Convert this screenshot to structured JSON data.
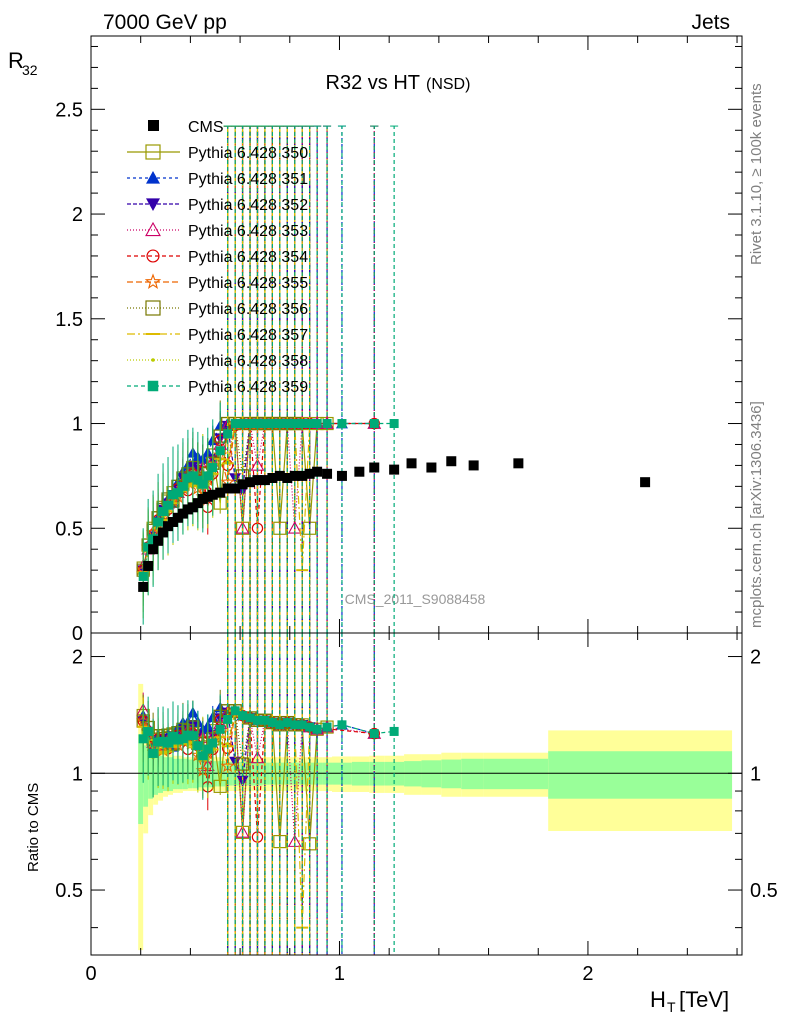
{
  "header": {
    "left": "7000 GeV pp",
    "right": "Jets"
  },
  "side_text": {
    "top": "Rivet 3.1.10, ≥ 100k events",
    "bottom": "mcplots.cern.ch [arXiv:1306.3436]"
  },
  "watermark": "CMS_2011_S9088458",
  "chart_data": {
    "type": "scatter",
    "title": "R32 vs HT",
    "title_suffix": "(NSD)",
    "xlabel": "H",
    "xlabel_sub": "T",
    "xlabel_unit": "[TeV]",
    "ylabel": "R",
    "ylabel_sub": "32",
    "ratio_ylabel": "Ratio to CMS",
    "xlim": [
      0,
      2.62
    ],
    "ylim": [
      0,
      2.85
    ],
    "ratio_ylim": [
      0.34,
      2.3
    ],
    "x_ticks": [
      "0",
      "1",
      "2"
    ],
    "y_ticks": [
      "0",
      "0.5",
      "1",
      "1.5",
      "2",
      "2.5"
    ],
    "ratio_ticks": [
      "0.5",
      "1",
      "2"
    ],
    "data": {
      "name": "CMS",
      "x": [
        0.21,
        0.23,
        0.25,
        0.27,
        0.29,
        0.31,
        0.33,
        0.35,
        0.37,
        0.39,
        0.41,
        0.43,
        0.45,
        0.47,
        0.49,
        0.52,
        0.55,
        0.58,
        0.61,
        0.64,
        0.67,
        0.7,
        0.73,
        0.76,
        0.79,
        0.82,
        0.85,
        0.88,
        0.91,
        0.95,
        1.01,
        1.08,
        1.14,
        1.22,
        1.29,
        1.37,
        1.45,
        1.54,
        1.72,
        2.23
      ],
      "y": [
        0.22,
        0.32,
        0.4,
        0.44,
        0.48,
        0.51,
        0.53,
        0.55,
        0.57,
        0.59,
        0.6,
        0.62,
        0.64,
        0.65,
        0.66,
        0.67,
        0.69,
        0.69,
        0.71,
        0.72,
        0.73,
        0.73,
        0.74,
        0.75,
        0.74,
        0.75,
        0.75,
        0.76,
        0.77,
        0.76,
        0.75,
        0.77,
        0.79,
        0.78,
        0.81,
        0.79,
        0.82,
        0.8,
        0.81,
        0.72
      ]
    },
    "uncertainty_bands": {
      "edges": [
        0.19,
        0.21,
        0.23,
        0.25,
        0.27,
        0.29,
        0.31,
        0.33,
        0.35,
        0.37,
        0.39,
        0.41,
        0.43,
        0.45,
        0.47,
        0.49,
        0.51,
        0.54,
        0.57,
        0.6,
        0.63,
        0.66,
        0.69,
        0.72,
        0.75,
        0.78,
        0.81,
        0.84,
        0.87,
        0.9,
        0.93,
        0.97,
        1.05,
        1.12,
        1.18,
        1.26,
        1.33,
        1.41,
        1.49,
        1.58,
        1.84,
        2.58
      ],
      "stat": [
        0.26,
        0.18,
        0.14,
        0.12,
        0.11,
        0.1,
        0.1,
        0.09,
        0.09,
        0.09,
        0.085,
        0.085,
        0.08,
        0.08,
        0.08,
        0.075,
        0.075,
        0.07,
        0.07,
        0.07,
        0.07,
        0.07,
        0.065,
        0.065,
        0.065,
        0.065,
        0.065,
        0.065,
        0.065,
        0.065,
        0.065,
        0.065,
        0.07,
        0.07,
        0.07,
        0.075,
        0.08,
        0.085,
        0.09,
        0.09,
        0.14
      ],
      "total": [
        0.7,
        0.3,
        0.22,
        0.17,
        0.15,
        0.13,
        0.12,
        0.11,
        0.11,
        0.1,
        0.1,
        0.1,
        0.1,
        0.1,
        0.1,
        0.1,
        0.1,
        0.1,
        0.1,
        0.1,
        0.1,
        0.1,
        0.1,
        0.1,
        0.1,
        0.1,
        0.1,
        0.1,
        0.1,
        0.1,
        0.1,
        0.105,
        0.105,
        0.11,
        0.11,
        0.12,
        0.12,
        0.13,
        0.13,
        0.13,
        0.29
      ],
      "stat_color": "#99ff99",
      "total_color": "#ffff99"
    },
    "mc_x": [
      0.21,
      0.23,
      0.25,
      0.27,
      0.29,
      0.31,
      0.33,
      0.35,
      0.37,
      0.39,
      0.41,
      0.43,
      0.45,
      0.47,
      0.49,
      0.52,
      0.55,
      0.58,
      0.61,
      0.64,
      0.67,
      0.7,
      0.73,
      0.76,
      0.79,
      0.82,
      0.85,
      0.88,
      0.91,
      0.95,
      1.01,
      1.14,
      1.22
    ],
    "series": [
      {
        "name": "Pythia 6.428 350",
        "color": "#999900",
        "marker": "open-square",
        "dash": "solid",
        "values": [
          0.31,
          0.42,
          0.5,
          0.55,
          0.6,
          0.63,
          0.67,
          0.7,
          0.71,
          0.74,
          0.76,
          0.75,
          0.72,
          0.78,
          0.85,
          0.62,
          1.0,
          1.0,
          0.5,
          1.0,
          1.0,
          1.0,
          1.0,
          0.5,
          1.0,
          1.0,
          1.0,
          0.5,
          1.0,
          1.0,
          null,
          null,
          null
        ]
      },
      {
        "name": "Pythia 6.428 351",
        "color": "#0033cc",
        "marker": "triangle-up",
        "dash": "3,3",
        "values": [
          0.31,
          0.42,
          0.47,
          0.55,
          0.58,
          0.64,
          0.62,
          0.72,
          0.77,
          0.8,
          0.86,
          0.84,
          0.83,
          0.86,
          0.92,
          0.99,
          1.0,
          1.0,
          1.0,
          1.0,
          1.0,
          1.0,
          1.0,
          1.0,
          1.0,
          1.0,
          1.0,
          1.0,
          1.0,
          1.0,
          1.0,
          1.0,
          null
        ]
      },
      {
        "name": "Pythia 6.428 352",
        "color": "#3300aa",
        "marker": "triangle-down",
        "dash": "4,2",
        "values": [
          0.3,
          0.41,
          0.46,
          0.53,
          0.59,
          0.62,
          0.66,
          0.69,
          0.74,
          0.75,
          0.8,
          0.78,
          0.7,
          0.74,
          0.83,
          0.93,
          0.99,
          0.74,
          0.68,
          1.0,
          1.0,
          1.0,
          1.0,
          1.0,
          1.0,
          1.0,
          1.0,
          1.0,
          null,
          null,
          null,
          null,
          null
        ]
      },
      {
        "name": "Pythia 6.428 353",
        "color": "#cc0066",
        "marker": "open-triangle",
        "dash": "1,2",
        "values": [
          0.32,
          0.4,
          0.48,
          0.52,
          0.57,
          0.62,
          0.66,
          0.67,
          0.72,
          0.76,
          0.77,
          0.74,
          0.79,
          0.68,
          0.82,
          0.9,
          0.99,
          1.0,
          0.5,
          1.0,
          0.8,
          1.0,
          1.0,
          1.0,
          1.0,
          0.5,
          1.0,
          1.0,
          1.0,
          1.0,
          null,
          1.0,
          null
        ]
      },
      {
        "name": "Pythia 6.428 354",
        "color": "#dd0000",
        "marker": "open-circle",
        "dash": "4,3",
        "values": [
          0.3,
          0.41,
          0.47,
          0.54,
          0.56,
          0.59,
          0.64,
          0.69,
          0.7,
          0.68,
          0.76,
          0.73,
          0.77,
          0.6,
          0.76,
          0.92,
          0.8,
          0.99,
          1.0,
          1.0,
          0.5,
          1.0,
          1.0,
          1.0,
          1.0,
          1.0,
          1.0,
          1.0,
          null,
          null,
          null,
          1.0,
          null
        ]
      },
      {
        "name": "Pythia 6.428 355",
        "color": "#ee6600",
        "marker": "open-star",
        "dash": "6,3",
        "values": [
          0.3,
          0.41,
          0.48,
          0.51,
          0.55,
          0.6,
          0.63,
          0.65,
          0.69,
          0.72,
          0.73,
          0.69,
          0.65,
          0.73,
          0.8,
          0.85,
          0.72,
          1.0,
          1.0,
          1.0,
          1.0,
          1.0,
          1.0,
          1.0,
          null,
          null,
          null,
          null,
          null,
          null,
          null,
          null,
          null
        ]
      },
      {
        "name": "Pythia 6.428 356",
        "color": "#777700",
        "marker": "open-square",
        "dash": "1,2",
        "values": [
          0.3,
          0.42,
          0.49,
          0.55,
          0.59,
          0.64,
          0.63,
          0.7,
          0.74,
          0.76,
          0.79,
          0.74,
          0.73,
          0.76,
          0.81,
          0.94,
          1.0,
          1.0,
          0.75,
          1.0,
          1.0,
          1.0,
          1.0,
          1.0,
          1.0,
          1.0,
          null,
          null,
          null,
          null,
          null,
          null,
          null
        ]
      },
      {
        "name": "Pythia 6.428 357",
        "color": "#ddbb00",
        "marker": "dash",
        "dash": "8,3,2,3",
        "values": [
          0.29,
          0.39,
          0.46,
          0.5,
          0.54,
          0.58,
          0.62,
          0.66,
          0.68,
          0.71,
          0.7,
          0.72,
          0.69,
          0.74,
          0.76,
          0.83,
          0.81,
          1.0,
          1.0,
          1.0,
          1.0,
          1.0,
          1.0,
          1.0,
          1.0,
          1.0,
          0.3,
          1.0,
          null,
          null,
          null,
          null,
          null
        ]
      },
      {
        "name": "Pythia 6.428 358",
        "color": "#bbcc00",
        "marker": "dot",
        "dash": "1,2",
        "values": [
          0.28,
          0.39,
          0.44,
          0.51,
          0.56,
          0.58,
          0.63,
          0.65,
          0.68,
          0.7,
          0.72,
          0.7,
          0.74,
          0.71,
          0.76,
          0.8,
          0.82,
          1.0,
          1.0,
          1.0,
          1.0,
          1.0,
          null,
          null,
          null,
          null,
          null,
          null,
          null,
          null,
          null,
          null,
          null
        ]
      },
      {
        "name": "Pythia 6.428 359",
        "color": "#00aa77",
        "marker": "filled-square",
        "dash": "4,3",
        "values": [
          0.27,
          0.41,
          0.45,
          0.53,
          0.58,
          0.61,
          0.66,
          0.67,
          0.7,
          0.74,
          0.75,
          0.73,
          0.71,
          0.75,
          0.79,
          0.87,
          0.95,
          1.0,
          1.0,
          1.0,
          1.0,
          1.0,
          1.0,
          1.0,
          1.0,
          1.0,
          1.0,
          1.0,
          1.0,
          1.0,
          1.0,
          1.0,
          1.0
        ]
      }
    ]
  }
}
